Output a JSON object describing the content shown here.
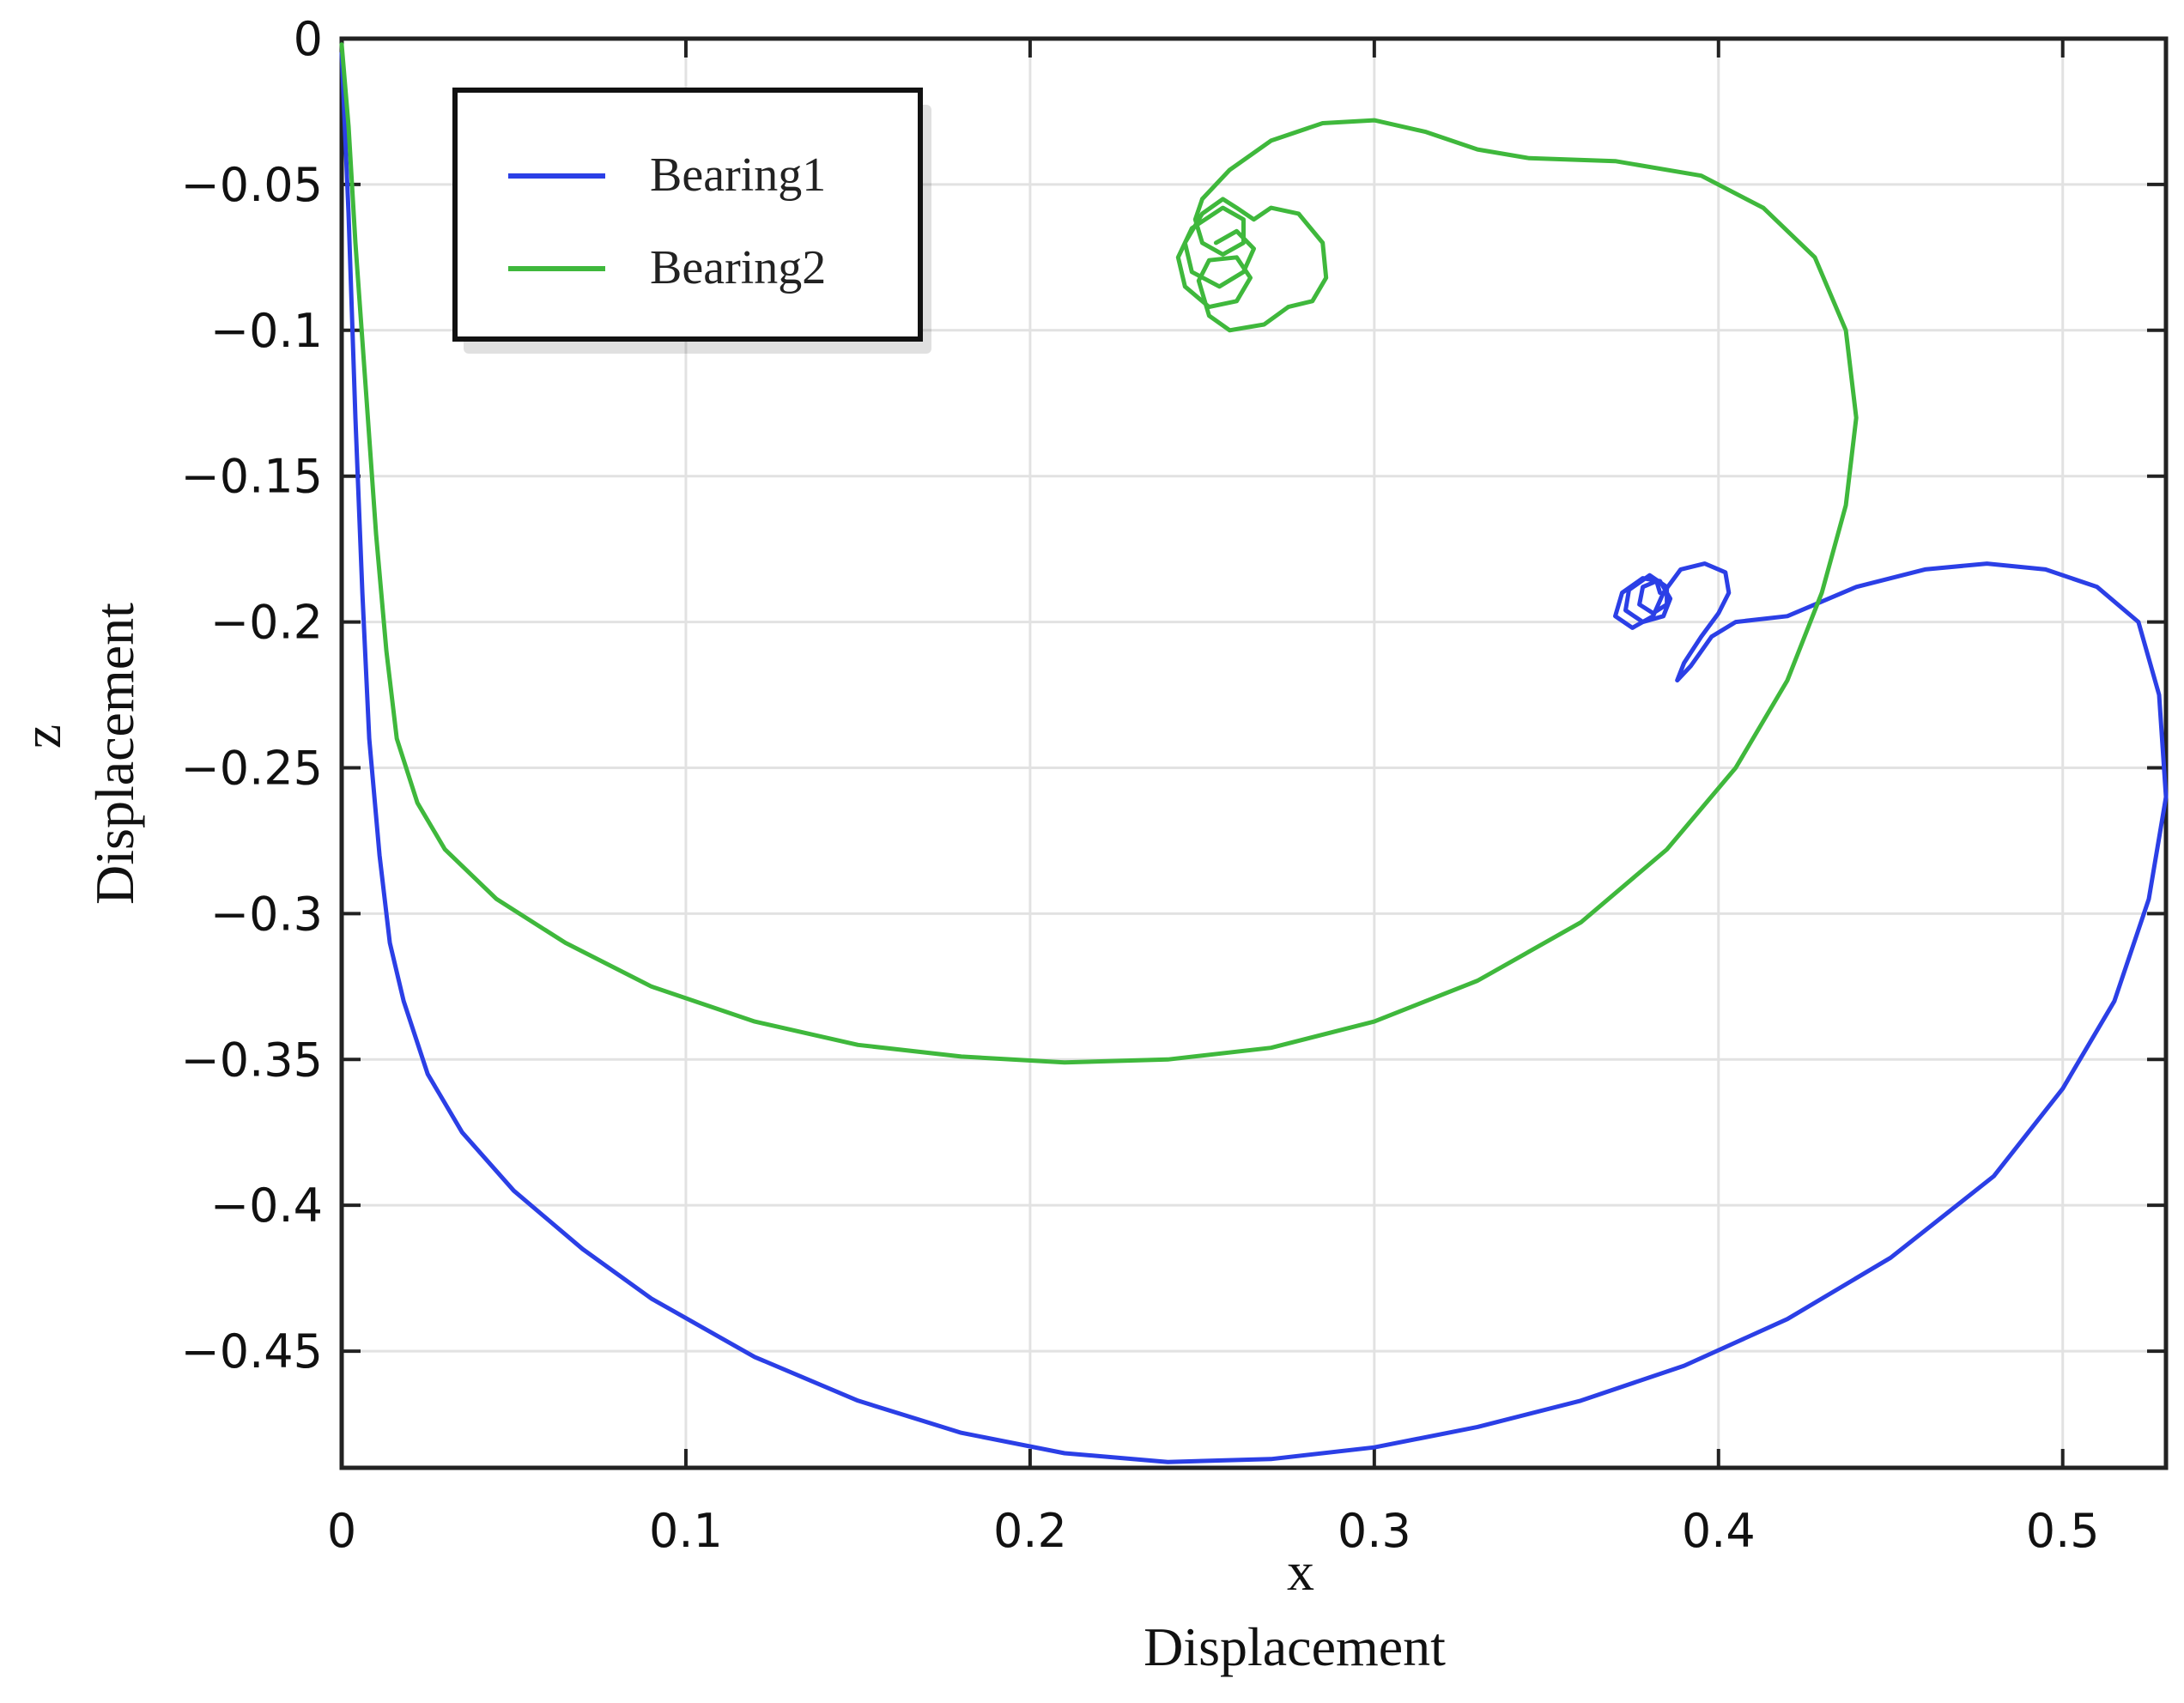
{
  "chart_data": {
    "type": "line",
    "title": "",
    "xlabel_top": "x",
    "xlabel_bottom": "Displacement",
    "ylabel_top": "z",
    "ylabel_bottom": "Displacement",
    "xlim": [
      0,
      0.53
    ],
    "ylim": [
      -0.49,
      0
    ],
    "grid": true,
    "legend_position": "top-left",
    "x_ticks": [
      0,
      0.1,
      0.2,
      0.3,
      0.4,
      0.5
    ],
    "x_tick_labels": [
      "0",
      "0.1",
      "0.2",
      "0.3",
      "0.4",
      "0.5"
    ],
    "y_ticks": [
      0,
      -0.05,
      -0.1,
      -0.15,
      -0.2,
      -0.25,
      -0.3,
      -0.35,
      -0.4,
      -0.45
    ],
    "y_tick_labels": [
      "0",
      "−0.05",
      "−0.1",
      "−0.15",
      "−0.2",
      "−0.25",
      "−0.3",
      "−0.35",
      "−0.4",
      "−0.45"
    ],
    "series": [
      {
        "name": "Bearing1",
        "color": "#2b3fe6",
        "points": [
          [
            0,
            -0.005
          ],
          [
            0.002,
            -0.06
          ],
          [
            0.004,
            -0.13
          ],
          [
            0.006,
            -0.19
          ],
          [
            0.008,
            -0.24
          ],
          [
            0.011,
            -0.28
          ],
          [
            0.014,
            -0.31
          ],
          [
            0.018,
            -0.33
          ],
          [
            0.025,
            -0.355
          ],
          [
            0.035,
            -0.375
          ],
          [
            0.05,
            -0.395
          ],
          [
            0.07,
            -0.415
          ],
          [
            0.09,
            -0.432
          ],
          [
            0.12,
            -0.452
          ],
          [
            0.15,
            -0.467
          ],
          [
            0.18,
            -0.478
          ],
          [
            0.21,
            -0.485
          ],
          [
            0.24,
            -0.488
          ],
          [
            0.27,
            -0.487
          ],
          [
            0.3,
            -0.483
          ],
          [
            0.33,
            -0.476
          ],
          [
            0.36,
            -0.467
          ],
          [
            0.39,
            -0.455
          ],
          [
            0.42,
            -0.439
          ],
          [
            0.45,
            -0.418
          ],
          [
            0.48,
            -0.39
          ],
          [
            0.5,
            -0.36
          ],
          [
            0.515,
            -0.33
          ],
          [
            0.525,
            -0.295
          ],
          [
            0.53,
            -0.26
          ],
          [
            0.528,
            -0.225
          ],
          [
            0.522,
            -0.2
          ],
          [
            0.51,
            -0.188
          ],
          [
            0.495,
            -0.182
          ],
          [
            0.478,
            -0.18
          ],
          [
            0.46,
            -0.182
          ],
          [
            0.44,
            -0.188
          ],
          [
            0.43,
            -0.193
          ],
          [
            0.42,
            -0.198
          ],
          [
            0.405,
            -0.2
          ],
          [
            0.398,
            -0.205
          ],
          [
            0.392,
            -0.215
          ],
          [
            0.388,
            -0.22
          ],
          [
            0.39,
            -0.214
          ],
          [
            0.395,
            -0.205
          ],
          [
            0.4,
            -0.197
          ],
          [
            0.403,
            -0.19
          ],
          [
            0.402,
            -0.183
          ],
          [
            0.396,
            -0.18
          ],
          [
            0.389,
            -0.182
          ],
          [
            0.384,
            -0.19
          ],
          [
            0.381,
            -0.198
          ],
          [
            0.375,
            -0.202
          ],
          [
            0.37,
            -0.198
          ],
          [
            0.372,
            -0.19
          ],
          [
            0.378,
            -0.185
          ],
          [
            0.383,
            -0.186
          ],
          [
            0.386,
            -0.192
          ],
          [
            0.384,
            -0.198
          ],
          [
            0.378,
            -0.2
          ],
          [
            0.373,
            -0.196
          ],
          [
            0.374,
            -0.189
          ],
          [
            0.38,
            -0.184
          ],
          [
            0.385,
            -0.188
          ],
          [
            0.385,
            -0.194
          ],
          [
            0.381,
            -0.197
          ],
          [
            0.377,
            -0.194
          ],
          [
            0.378,
            -0.188
          ],
          [
            0.382,
            -0.186
          ],
          [
            0.383,
            -0.19
          ]
        ]
      },
      {
        "name": "Bearing2",
        "color": "#3fb83c",
        "points": [
          [
            0,
            -0.002
          ],
          [
            0.002,
            -0.03
          ],
          [
            0.004,
            -0.07
          ],
          [
            0.007,
            -0.12
          ],
          [
            0.01,
            -0.17
          ],
          [
            0.013,
            -0.21
          ],
          [
            0.016,
            -0.24
          ],
          [
            0.022,
            -0.262
          ],
          [
            0.03,
            -0.278
          ],
          [
            0.045,
            -0.295
          ],
          [
            0.065,
            -0.31
          ],
          [
            0.09,
            -0.325
          ],
          [
            0.12,
            -0.337
          ],
          [
            0.15,
            -0.345
          ],
          [
            0.18,
            -0.349
          ],
          [
            0.21,
            -0.351
          ],
          [
            0.24,
            -0.35
          ],
          [
            0.27,
            -0.346
          ],
          [
            0.3,
            -0.337
          ],
          [
            0.33,
            -0.323
          ],
          [
            0.36,
            -0.303
          ],
          [
            0.385,
            -0.278
          ],
          [
            0.405,
            -0.25
          ],
          [
            0.42,
            -0.22
          ],
          [
            0.43,
            -0.19
          ],
          [
            0.437,
            -0.16
          ],
          [
            0.44,
            -0.13
          ],
          [
            0.437,
            -0.1
          ],
          [
            0.428,
            -0.075
          ],
          [
            0.413,
            -0.058
          ],
          [
            0.395,
            -0.047
          ],
          [
            0.37,
            -0.042
          ],
          [
            0.345,
            -0.041
          ],
          [
            0.33,
            -0.038
          ],
          [
            0.315,
            -0.032
          ],
          [
            0.3,
            -0.028
          ],
          [
            0.285,
            -0.029
          ],
          [
            0.27,
            -0.035
          ],
          [
            0.258,
            -0.045
          ],
          [
            0.25,
            -0.055
          ],
          [
            0.248,
            -0.062
          ],
          [
            0.25,
            -0.07
          ],
          [
            0.256,
            -0.074
          ],
          [
            0.262,
            -0.07
          ],
          [
            0.262,
            -0.062
          ],
          [
            0.256,
            -0.058
          ],
          [
            0.247,
            -0.065
          ],
          [
            0.243,
            -0.075
          ],
          [
            0.245,
            -0.085
          ],
          [
            0.252,
            -0.092
          ],
          [
            0.26,
            -0.09
          ],
          [
            0.264,
            -0.082
          ],
          [
            0.26,
            -0.075
          ],
          [
            0.252,
            -0.076
          ],
          [
            0.249,
            -0.083
          ],
          [
            0.252,
            -0.095
          ],
          [
            0.258,
            -0.1
          ],
          [
            0.268,
            -0.098
          ],
          [
            0.275,
            -0.092
          ],
          [
            0.282,
            -0.09
          ],
          [
            0.286,
            -0.082
          ],
          [
            0.285,
            -0.07
          ],
          [
            0.278,
            -0.06
          ],
          [
            0.27,
            -0.058
          ],
          [
            0.265,
            -0.062
          ],
          [
            0.26,
            -0.058
          ],
          [
            0.256,
            -0.055
          ],
          [
            0.25,
            -0.06
          ],
          [
            0.245,
            -0.07
          ],
          [
            0.247,
            -0.08
          ],
          [
            0.255,
            -0.085
          ],
          [
            0.262,
            -0.08
          ],
          [
            0.265,
            -0.072
          ],
          [
            0.26,
            -0.066
          ],
          [
            0.254,
            -0.07
          ]
        ]
      }
    ]
  }
}
